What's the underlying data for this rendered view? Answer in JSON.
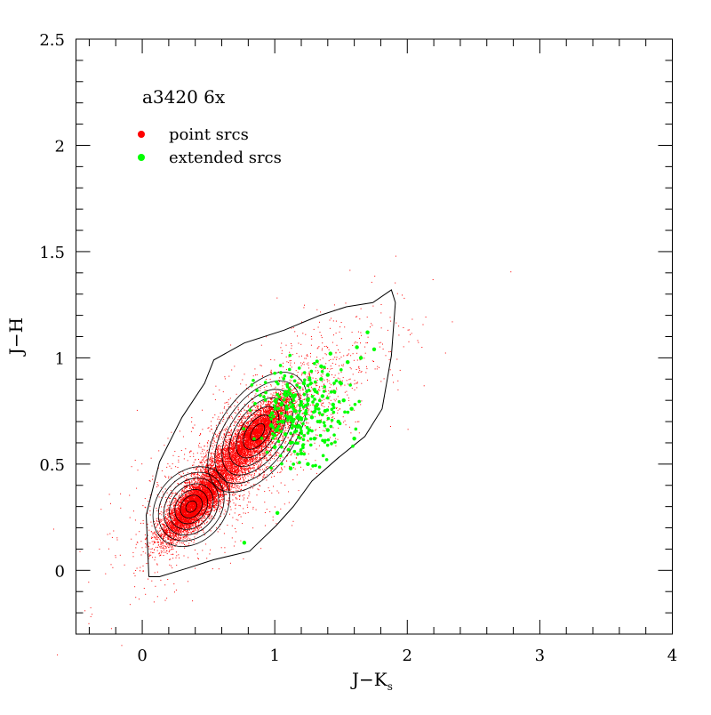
{
  "chart_data": {
    "type": "scatter",
    "title": "a3420 6x",
    "xlabel": "J−K",
    "xlabel_sub": "s",
    "ylabel": "J−H",
    "xlim": [
      -0.5,
      4
    ],
    "ylim": [
      -0.3,
      2.5
    ],
    "x_ticks": [
      "0",
      "1",
      "2",
      "3",
      "4"
    ],
    "y_ticks": [
      "0",
      "0.5",
      "1",
      "1.5",
      "2",
      "2.5"
    ],
    "grid": false,
    "legend_position": "top-left",
    "series": [
      {
        "name": "point srcs",
        "color": "#ff0000",
        "distribution": [
          {
            "center": [
              0.38,
              0.3
            ],
            "sigma": [
              0.12,
              0.08
            ],
            "weight": 0.35
          },
          {
            "center": [
              0.65,
              0.5
            ],
            "sigma": [
              0.18,
              0.12
            ],
            "weight": 0.25
          },
          {
            "center": [
              0.88,
              0.66
            ],
            "sigma": [
              0.12,
              0.08
            ],
            "weight": 0.25
          },
          {
            "center": [
              0.85,
              0.6
            ],
            "sigma": [
              0.45,
              0.28
            ],
            "weight": 0.15
          }
        ],
        "count": 14000
      },
      {
        "name": "extended srcs",
        "color": "#00ff00",
        "points": [
          [
            1.05,
            0.7
          ],
          [
            1.1,
            0.72
          ],
          [
            1.02,
            0.66
          ],
          [
            1.08,
            0.64
          ],
          [
            1.15,
            0.75
          ],
          [
            1.2,
            0.78
          ],
          [
            1.25,
            0.8
          ],
          [
            1.3,
            0.85
          ],
          [
            1.35,
            0.9
          ],
          [
            1.4,
            0.92
          ],
          [
            1.28,
            0.72
          ],
          [
            1.18,
            0.68
          ],
          [
            1.12,
            0.6
          ],
          [
            1.0,
            0.58
          ],
          [
            1.22,
            0.88
          ],
          [
            1.38,
            0.75
          ],
          [
            1.45,
            0.84
          ],
          [
            1.5,
            0.88
          ],
          [
            1.55,
            0.98
          ],
          [
            1.62,
            1.05
          ],
          [
            1.7,
            1.12
          ],
          [
            1.75,
            1.04
          ],
          [
            1.65,
            1.0
          ],
          [
            1.42,
            1.02
          ],
          [
            1.35,
            0.96
          ],
          [
            1.3,
            0.62
          ],
          [
            1.2,
            0.55
          ],
          [
            1.25,
            0.5
          ],
          [
            1.05,
            0.78
          ],
          [
            0.98,
            0.74
          ],
          [
            1.08,
            0.84
          ],
          [
            1.15,
            0.82
          ],
          [
            1.32,
            0.78
          ],
          [
            1.48,
            0.7
          ],
          [
            1.58,
            0.76
          ],
          [
            1.6,
            0.62
          ],
          [
            1.4,
            0.66
          ],
          [
            1.12,
            0.48
          ],
          [
            1.02,
            0.27
          ],
          [
            0.77,
            0.13
          ],
          [
            1.34,
            0.7
          ],
          [
            1.26,
            0.66
          ],
          [
            1.17,
            0.72
          ],
          [
            1.09,
            0.76
          ],
          [
            1.23,
            0.74
          ],
          [
            1.36,
            0.82
          ],
          [
            1.44,
            0.78
          ],
          [
            1.52,
            0.8
          ]
        ]
      }
    ],
    "contours": {
      "outer": [
        [
          0.05,
          -0.03
        ],
        [
          0.03,
          0.26
        ],
        [
          0.13,
          0.51
        ],
        [
          0.3,
          0.72
        ],
        [
          0.47,
          0.88
        ],
        [
          0.54,
          0.99
        ],
        [
          0.77,
          1.07
        ],
        [
          1.07,
          1.13
        ],
        [
          1.34,
          1.2
        ],
        [
          1.54,
          1.24
        ],
        [
          1.74,
          1.26
        ],
        [
          1.88,
          1.32
        ],
        [
          1.91,
          1.26
        ],
        [
          1.88,
          1.01
        ],
        [
          1.81,
          0.76
        ],
        [
          1.68,
          0.63
        ],
        [
          1.48,
          0.53
        ],
        [
          1.28,
          0.42
        ],
        [
          1.14,
          0.3
        ],
        [
          1.01,
          0.21
        ],
        [
          0.81,
          0.09
        ],
        [
          0.54,
          0.05
        ],
        [
          0.34,
          0.01
        ],
        [
          0.13,
          -0.03
        ],
        [
          0.05,
          -0.03
        ]
      ],
      "peaks": [
        [
          0.37,
          0.3
        ],
        [
          0.87,
          0.65
        ]
      ]
    }
  }
}
